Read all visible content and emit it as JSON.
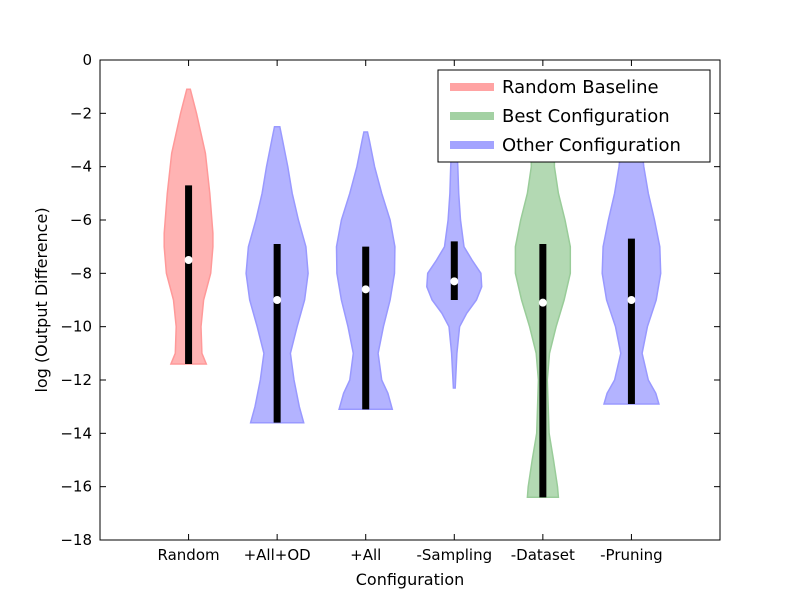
{
  "chart_data": {
    "type": "violin",
    "xlabel": "Configuration",
    "ylabel": "log (Output Difference)",
    "ylim": [
      -18,
      0
    ],
    "yticks": [
      0,
      -2,
      -4,
      -6,
      -8,
      -10,
      -12,
      -14,
      -16,
      -18
    ],
    "ytick_labels": [
      "0",
      "−2",
      "−4",
      "−6",
      "−8",
      "−10",
      "−12",
      "−14",
      "−16",
      "−18"
    ],
    "categories": [
      "Random",
      "+All+OD",
      "+All",
      "-Sampling",
      "-Dataset",
      "-Pruning"
    ],
    "grid": false,
    "legend_position": "top-right",
    "legend": [
      {
        "label": "Random Baseline",
        "color": "#ff9999"
      },
      {
        "label": "Best Configuration",
        "color": "#99cc99"
      },
      {
        "label": "Other Configuration",
        "color": "#9999ff"
      }
    ],
    "violins": [
      {
        "category": "Random",
        "group": "Random Baseline",
        "min": -11.4,
        "max": -1.1,
        "q1": -11.4,
        "q3": -4.7,
        "median": -7.5,
        "profile": [
          [
            -11.4,
            0.4
          ],
          [
            -11.0,
            0.3
          ],
          [
            -10.0,
            0.28
          ],
          [
            -9.0,
            0.34
          ],
          [
            -8.0,
            0.5
          ],
          [
            -7.0,
            0.55
          ],
          [
            -6.5,
            0.55
          ],
          [
            -5.0,
            0.48
          ],
          [
            -3.5,
            0.38
          ],
          [
            -2.0,
            0.18
          ],
          [
            -1.1,
            0.04
          ]
        ]
      },
      {
        "category": "+All+OD",
        "group": "Other Configuration",
        "min": -13.6,
        "max": -2.5,
        "q1": -13.6,
        "q3": -6.9,
        "median": -9.0,
        "profile": [
          [
            -13.6,
            0.6
          ],
          [
            -13.0,
            0.5
          ],
          [
            -12.0,
            0.38
          ],
          [
            -11.0,
            0.3
          ],
          [
            -10.0,
            0.45
          ],
          [
            -9.0,
            0.62
          ],
          [
            -8.0,
            0.7
          ],
          [
            -7.0,
            0.65
          ],
          [
            -6.0,
            0.48
          ],
          [
            -5.0,
            0.34
          ],
          [
            -4.0,
            0.24
          ],
          [
            -3.0,
            0.12
          ],
          [
            -2.5,
            0.06
          ]
        ]
      },
      {
        "category": "+All",
        "group": "Other Configuration",
        "min": -13.1,
        "max": -2.7,
        "q1": -13.1,
        "q3": -7.0,
        "median": -8.6,
        "profile": [
          [
            -13.1,
            0.6
          ],
          [
            -12.5,
            0.5
          ],
          [
            -12.0,
            0.36
          ],
          [
            -11.0,
            0.28
          ],
          [
            -10.0,
            0.4
          ],
          [
            -9.0,
            0.55
          ],
          [
            -8.0,
            0.65
          ],
          [
            -7.0,
            0.66
          ],
          [
            -6.0,
            0.55
          ],
          [
            -5.0,
            0.36
          ],
          [
            -4.0,
            0.2
          ],
          [
            -3.0,
            0.08
          ],
          [
            -2.7,
            0.04
          ]
        ]
      },
      {
        "category": "-Sampling",
        "group": "Other Configuration",
        "min": -12.3,
        "max": -3.3,
        "q1": -9.0,
        "q3": -6.8,
        "median": -8.3,
        "profile": [
          [
            -12.3,
            0.02
          ],
          [
            -11.0,
            0.06
          ],
          [
            -10.0,
            0.12
          ],
          [
            -9.5,
            0.28
          ],
          [
            -9.0,
            0.5
          ],
          [
            -8.5,
            0.62
          ],
          [
            -8.0,
            0.6
          ],
          [
            -7.5,
            0.4
          ],
          [
            -7.0,
            0.22
          ],
          [
            -6.0,
            0.14
          ],
          [
            -5.0,
            0.1
          ],
          [
            -4.0,
            0.08
          ],
          [
            -3.3,
            0.06
          ]
        ]
      },
      {
        "category": "-Dataset",
        "group": "Best Configuration",
        "min": -16.4,
        "max": -3.7,
        "q1": -16.4,
        "q3": -6.9,
        "median": -9.1,
        "profile": [
          [
            -16.4,
            0.35
          ],
          [
            -16.0,
            0.33
          ],
          [
            -15.0,
            0.24
          ],
          [
            -14.0,
            0.14
          ],
          [
            -12.0,
            0.1
          ],
          [
            -11.0,
            0.15
          ],
          [
            -10.0,
            0.3
          ],
          [
            -9.0,
            0.48
          ],
          [
            -8.0,
            0.62
          ],
          [
            -7.0,
            0.62
          ],
          [
            -6.0,
            0.5
          ],
          [
            -5.0,
            0.35
          ],
          [
            -4.0,
            0.26
          ],
          [
            -3.7,
            0.26
          ]
        ]
      },
      {
        "category": "-Pruning",
        "group": "Other Configuration",
        "min": -12.9,
        "max": -3.7,
        "q1": -12.9,
        "q3": -6.7,
        "median": -9.0,
        "profile": [
          [
            -12.9,
            0.62
          ],
          [
            -12.5,
            0.55
          ],
          [
            -12.0,
            0.38
          ],
          [
            -11.0,
            0.24
          ],
          [
            -10.0,
            0.36
          ],
          [
            -9.0,
            0.56
          ],
          [
            -8.0,
            0.66
          ],
          [
            -7.0,
            0.64
          ],
          [
            -6.0,
            0.52
          ],
          [
            -5.0,
            0.38
          ],
          [
            -4.0,
            0.28
          ],
          [
            -3.7,
            0.26
          ]
        ]
      }
    ]
  }
}
